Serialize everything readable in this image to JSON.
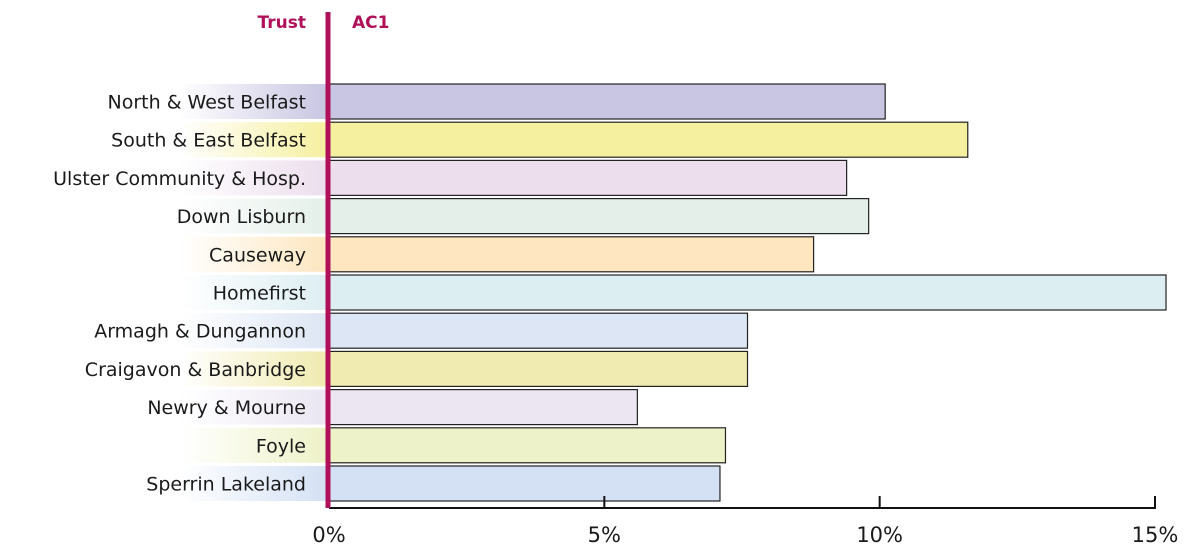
{
  "chart_data": {
    "type": "bar",
    "orientation": "horizontal",
    "row_header": "Trust",
    "value_header": "AC1",
    "categories": [
      "North & West Belfast",
      "South & East Belfast",
      "Ulster Community & Hosp.",
      "Down Lisburn",
      "Causeway",
      "Homefirst",
      "Armagh & Dungannon",
      "Craigavon & Banbridge",
      "Newry & Mourne",
      "Foyle",
      "Sperrin Lakeland"
    ],
    "values": [
      10.1,
      11.6,
      9.4,
      9.8,
      8.8,
      15.2,
      7.6,
      7.6,
      5.6,
      7.2,
      7.1
    ],
    "unit": "%",
    "xlim": [
      0,
      15
    ],
    "xticks": [
      0,
      5,
      10,
      15
    ],
    "xtick_labels": [
      "0%",
      "5%",
      "10%",
      "15%"
    ],
    "grid": false,
    "legend": "none",
    "colors": {
      "accent": "#b0105a",
      "bar_stroke": "#222222",
      "bars": [
        "#c8c6e2",
        "#f5f0a0",
        "#ecdeed",
        "#e4efe9",
        "#fde6c0",
        "#ddeef2",
        "#dde6f4",
        "#f0ebb0",
        "#ebe6f2",
        "#eef2c8",
        "#d4e1f4"
      ]
    }
  }
}
